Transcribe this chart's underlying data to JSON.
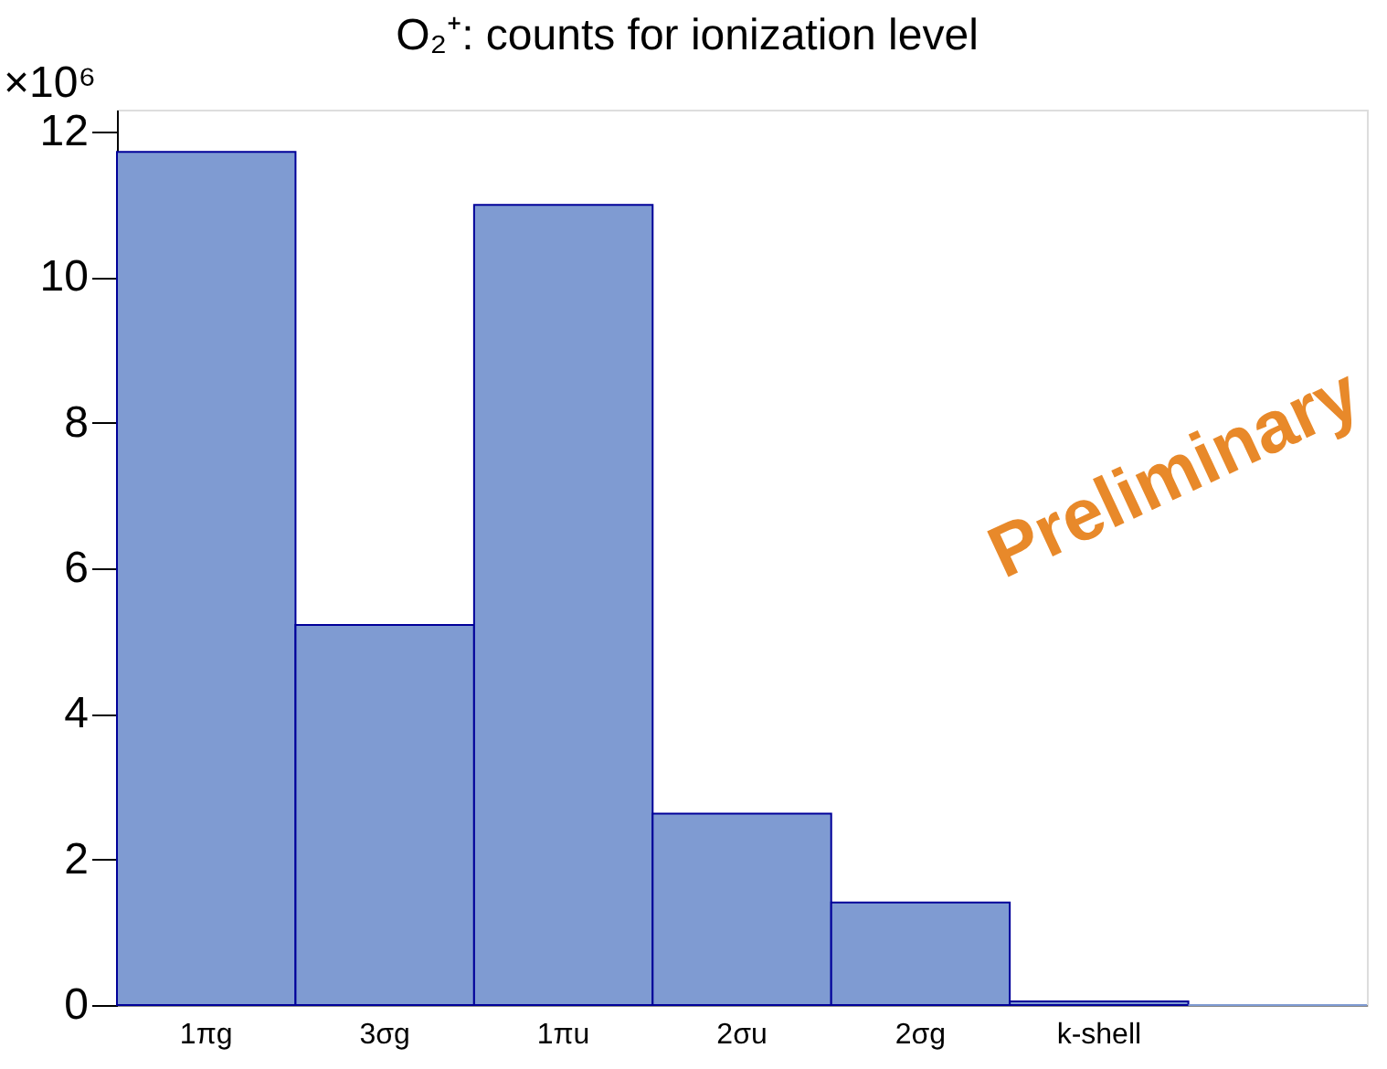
{
  "chart_data": {
    "type": "bar",
    "title": "O₂⁺: counts for ionization level",
    "ylabel": "×10⁶",
    "categories": [
      "1πg",
      "3σg",
      "1πu",
      "2σu",
      "2σg",
      "k-shell",
      null
    ],
    "values": [
      11.72,
      5.22,
      10.99,
      2.63,
      1.41,
      0.05,
      0
    ],
    "color": "#7f9bd2",
    "ylim": [
      0,
      12.3
    ],
    "yticks": [
      0,
      2,
      4,
      6,
      8,
      10,
      12
    ],
    "grid": false,
    "annotations": [
      "Preliminary"
    ]
  }
}
